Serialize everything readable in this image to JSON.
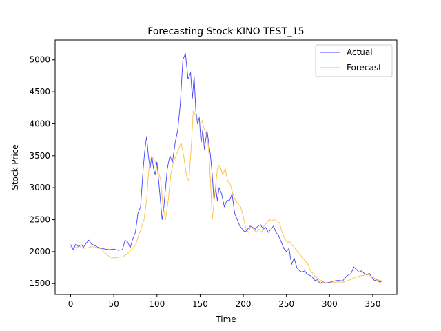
{
  "chart_data": {
    "type": "line",
    "title": "Forecasting Stock KINO TEST_15",
    "xlabel": "Time",
    "ylabel": "Stock Price",
    "xlim": [
      -18,
      378
    ],
    "ylim": [
      1330,
      5310
    ],
    "xticks": [
      0,
      50,
      100,
      150,
      200,
      250,
      300,
      350
    ],
    "yticks": [
      1500,
      2000,
      2500,
      3000,
      3500,
      4000,
      4500,
      5000
    ],
    "grid": false,
    "legend_position": "top-right",
    "series": [
      {
        "name": "Actual",
        "color": "#0000ff",
        "points": [
          [
            0,
            2110
          ],
          [
            3,
            2030
          ],
          [
            6,
            2120
          ],
          [
            9,
            2080
          ],
          [
            12,
            2110
          ],
          [
            15,
            2070
          ],
          [
            18,
            2130
          ],
          [
            21,
            2180
          ],
          [
            24,
            2120
          ],
          [
            27,
            2100
          ],
          [
            30,
            2080
          ],
          [
            33,
            2060
          ],
          [
            36,
            2050
          ],
          [
            40,
            2040
          ],
          [
            45,
            2030
          ],
          [
            50,
            2040
          ],
          [
            55,
            2020
          ],
          [
            60,
            2030
          ],
          [
            63,
            2180
          ],
          [
            66,
            2150
          ],
          [
            69,
            2060
          ],
          [
            72,
            2200
          ],
          [
            75,
            2300
          ],
          [
            78,
            2600
          ],
          [
            81,
            2700
          ],
          [
            84,
            3300
          ],
          [
            86,
            3600
          ],
          [
            88,
            3800
          ],
          [
            90,
            3500
          ],
          [
            92,
            3300
          ],
          [
            94,
            3500
          ],
          [
            96,
            3300
          ],
          [
            98,
            3200
          ],
          [
            100,
            3400
          ],
          [
            102,
            3100
          ],
          [
            104,
            2800
          ],
          [
            106,
            2500
          ],
          [
            108,
            2700
          ],
          [
            110,
            3000
          ],
          [
            112,
            3300
          ],
          [
            115,
            3500
          ],
          [
            118,
            3400
          ],
          [
            121,
            3700
          ],
          [
            124,
            3900
          ],
          [
            127,
            4300
          ],
          [
            130,
            5000
          ],
          [
            133,
            5100
          ],
          [
            136,
            4700
          ],
          [
            139,
            4800
          ],
          [
            141,
            4400
          ],
          [
            143,
            4750
          ],
          [
            145,
            4200
          ],
          [
            147,
            4000
          ],
          [
            149,
            4100
          ],
          [
            151,
            3700
          ],
          [
            153,
            3900
          ],
          [
            155,
            3600
          ],
          [
            158,
            3900
          ],
          [
            160,
            3700
          ],
          [
            162,
            3500
          ],
          [
            164,
            3200
          ],
          [
            166,
            2800
          ],
          [
            168,
            3000
          ],
          [
            170,
            2800
          ],
          [
            172,
            3000
          ],
          [
            175,
            2900
          ],
          [
            178,
            2700
          ],
          [
            181,
            2800
          ],
          [
            184,
            2800
          ],
          [
            187,
            2900
          ],
          [
            190,
            2600
          ],
          [
            193,
            2500
          ],
          [
            196,
            2400
          ],
          [
            199,
            2350
          ],
          [
            202,
            2300
          ],
          [
            205,
            2350
          ],
          [
            208,
            2400
          ],
          [
            211,
            2380
          ],
          [
            214,
            2350
          ],
          [
            217,
            2400
          ],
          [
            220,
            2420
          ],
          [
            223,
            2350
          ],
          [
            226,
            2380
          ],
          [
            229,
            2300
          ],
          [
            232,
            2350
          ],
          [
            235,
            2400
          ],
          [
            238,
            2300
          ],
          [
            241,
            2250
          ],
          [
            244,
            2150
          ],
          [
            247,
            2050
          ],
          [
            250,
            2000
          ],
          [
            253,
            2050
          ],
          [
            256,
            1800
          ],
          [
            259,
            1900
          ],
          [
            262,
            1750
          ],
          [
            265,
            1700
          ],
          [
            268,
            1680
          ],
          [
            271,
            1700
          ],
          [
            274,
            1650
          ],
          [
            277,
            1630
          ],
          [
            280,
            1600
          ],
          [
            283,
            1550
          ],
          [
            286,
            1560
          ],
          [
            289,
            1500
          ],
          [
            292,
            1530
          ],
          [
            295,
            1510
          ],
          [
            300,
            1520
          ],
          [
            305,
            1540
          ],
          [
            310,
            1550
          ],
          [
            315,
            1540
          ],
          [
            320,
            1620
          ],
          [
            325,
            1660
          ],
          [
            328,
            1760
          ],
          [
            331,
            1720
          ],
          [
            334,
            1680
          ],
          [
            337,
            1700
          ],
          [
            340,
            1660
          ],
          [
            343,
            1640
          ],
          [
            346,
            1660
          ],
          [
            349,
            1600
          ],
          [
            352,
            1550
          ],
          [
            355,
            1560
          ],
          [
            358,
            1520
          ],
          [
            361,
            1540
          ]
        ]
      },
      {
        "name": "Forecast",
        "color": "#ffa500",
        "points": [
          [
            0,
            2070
          ],
          [
            5,
            2060
          ],
          [
            10,
            2080
          ],
          [
            15,
            2050
          ],
          [
            20,
            2060
          ],
          [
            25,
            2080
          ],
          [
            30,
            2060
          ],
          [
            35,
            2040
          ],
          [
            40,
            1980
          ],
          [
            45,
            1920
          ],
          [
            50,
            1900
          ],
          [
            55,
            1910
          ],
          [
            60,
            1920
          ],
          [
            65,
            1960
          ],
          [
            70,
            2020
          ],
          [
            75,
            2100
          ],
          [
            80,
            2300
          ],
          [
            85,
            2500
          ],
          [
            88,
            2800
          ],
          [
            90,
            3200
          ],
          [
            92,
            3450
          ],
          [
            95,
            3480
          ],
          [
            98,
            3400
          ],
          [
            101,
            3250
          ],
          [
            104,
            3150
          ],
          [
            107,
            2700
          ],
          [
            110,
            2500
          ],
          [
            113,
            2800
          ],
          [
            116,
            3200
          ],
          [
            119,
            3400
          ],
          [
            122,
            3500
          ],
          [
            125,
            3600
          ],
          [
            128,
            3700
          ],
          [
            131,
            3500
          ],
          [
            134,
            3200
          ],
          [
            137,
            3100
          ],
          [
            140,
            3700
          ],
          [
            142,
            4200
          ],
          [
            144,
            4150
          ],
          [
            146,
            4100
          ],
          [
            148,
            4050
          ],
          [
            150,
            4000
          ],
          [
            152,
            4050
          ],
          [
            155,
            3900
          ],
          [
            158,
            3800
          ],
          [
            160,
            3600
          ],
          [
            162,
            3100
          ],
          [
            164,
            2500
          ],
          [
            167,
            2900
          ],
          [
            170,
            3300
          ],
          [
            173,
            3350
          ],
          [
            176,
            3200
          ],
          [
            179,
            3300
          ],
          [
            182,
            3100
          ],
          [
            185,
            3050
          ],
          [
            188,
            2900
          ],
          [
            191,
            2800
          ],
          [
            194,
            2750
          ],
          [
            197,
            2700
          ],
          [
            200,
            2550
          ],
          [
            203,
            2350
          ],
          [
            206,
            2300
          ],
          [
            209,
            2400
          ],
          [
            212,
            2350
          ],
          [
            215,
            2300
          ],
          [
            218,
            2350
          ],
          [
            221,
            2300
          ],
          [
            224,
            2400
          ],
          [
            227,
            2450
          ],
          [
            230,
            2500
          ],
          [
            233,
            2480
          ],
          [
            236,
            2500
          ],
          [
            239,
            2480
          ],
          [
            242,
            2450
          ],
          [
            245,
            2300
          ],
          [
            248,
            2200
          ],
          [
            251,
            2150
          ],
          [
            254,
            2150
          ],
          [
            257,
            2100
          ],
          [
            260,
            2050
          ],
          [
            263,
            2000
          ],
          [
            266,
            1950
          ],
          [
            269,
            1900
          ],
          [
            272,
            1850
          ],
          [
            275,
            1800
          ],
          [
            278,
            1700
          ],
          [
            281,
            1650
          ],
          [
            284,
            1600
          ],
          [
            287,
            1580
          ],
          [
            290,
            1550
          ],
          [
            295,
            1510
          ],
          [
            300,
            1510
          ],
          [
            305,
            1520
          ],
          [
            310,
            1530
          ],
          [
            315,
            1520
          ],
          [
            320,
            1540
          ],
          [
            325,
            1570
          ],
          [
            330,
            1600
          ],
          [
            335,
            1620
          ],
          [
            340,
            1630
          ],
          [
            345,
            1640
          ],
          [
            350,
            1600
          ],
          [
            355,
            1560
          ],
          [
            361,
            1540
          ]
        ]
      }
    ]
  }
}
